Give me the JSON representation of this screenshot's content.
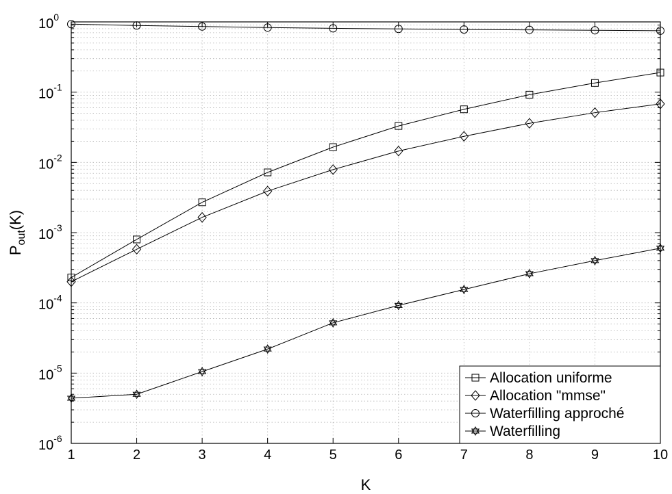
{
  "chart_data": {
    "type": "line",
    "x_axis": {
      "label": "K",
      "ticks": [
        1,
        2,
        3,
        4,
        5,
        6,
        7,
        8,
        9,
        10
      ],
      "range": [
        1,
        10
      ]
    },
    "y_axis": {
      "label_main": "P",
      "label_sub": "out",
      "label_suffix": "(K)",
      "scale": "log",
      "range": [
        1e-06,
        1
      ],
      "ticks": [
        {
          "value": 1,
          "base": "10",
          "exp": "0"
        },
        {
          "value": 0.1,
          "base": "10",
          "exp": "-1"
        },
        {
          "value": 0.01,
          "base": "10",
          "exp": "-2"
        },
        {
          "value": 0.001,
          "base": "10",
          "exp": "-3"
        },
        {
          "value": 0.0001,
          "base": "10",
          "exp": "-4"
        },
        {
          "value": 1e-05,
          "base": "10",
          "exp": "-5"
        },
        {
          "value": 1e-06,
          "base": "10",
          "exp": "-6"
        }
      ]
    },
    "grid": true,
    "legend_position": "bottom-right",
    "x": [
      1,
      2,
      3,
      4,
      5,
      6,
      7,
      8,
      9,
      10
    ],
    "series": [
      {
        "name": "Allocation uniforme",
        "marker": "square",
        "values": [
          0.00023,
          0.0008,
          0.0027,
          0.0072,
          0.0165,
          0.033,
          0.057,
          0.092,
          0.135,
          0.19
        ]
      },
      {
        "name": "Allocation \"mmse\"",
        "marker": "diamond",
        "values": [
          0.0002,
          0.00058,
          0.00165,
          0.0039,
          0.0079,
          0.0145,
          0.0235,
          0.036,
          0.051,
          0.068
        ]
      },
      {
        "name": "Waterfilling approché",
        "marker": "circle",
        "values": [
          0.93,
          0.89,
          0.86,
          0.83,
          0.81,
          0.795,
          0.78,
          0.77,
          0.76,
          0.75
        ]
      },
      {
        "name": "Waterfilling",
        "marker": "hexagram",
        "values": [
          4.4e-06,
          5e-06,
          1.05e-05,
          2.2e-05,
          5.2e-05,
          9.2e-05,
          0.000155,
          0.00026,
          0.0004,
          0.0006
        ]
      }
    ],
    "colors": {
      "line": "#000000",
      "grid": "#b4b4b4",
      "background": "#ffffff"
    }
  }
}
